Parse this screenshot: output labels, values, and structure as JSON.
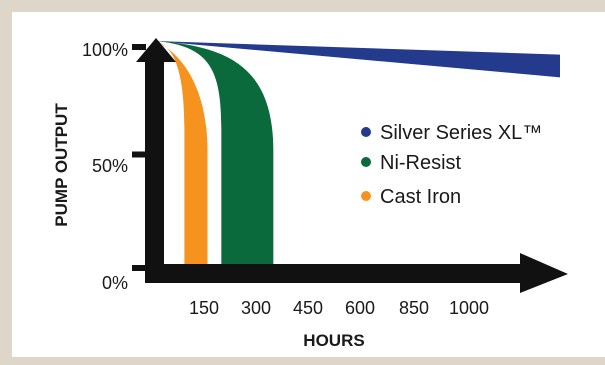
{
  "chart_data": {
    "type": "area",
    "ylabel": "PUMP OUTPUT",
    "xlabel": "HOURS",
    "y_ticks": [
      "0%",
      "50%",
      "100%"
    ],
    "x_ticks": [
      "150",
      "300",
      "450",
      "600",
      "850",
      "1000"
    ],
    "ylim": [
      0,
      100
    ],
    "series": [
      {
        "name": "Silver Series XL™",
        "color": "#243a8c",
        "output_at_last_tick": [
          94,
          84
        ]
      },
      {
        "name": "Ni-Resist",
        "color": "#0b6a3c",
        "failure_hours": [
          200,
          350
        ]
      },
      {
        "name": "Cast Iron",
        "color": "#f6921e",
        "failure_hours": [
          90,
          160
        ]
      }
    ],
    "legend_position": "right",
    "grid": false
  }
}
